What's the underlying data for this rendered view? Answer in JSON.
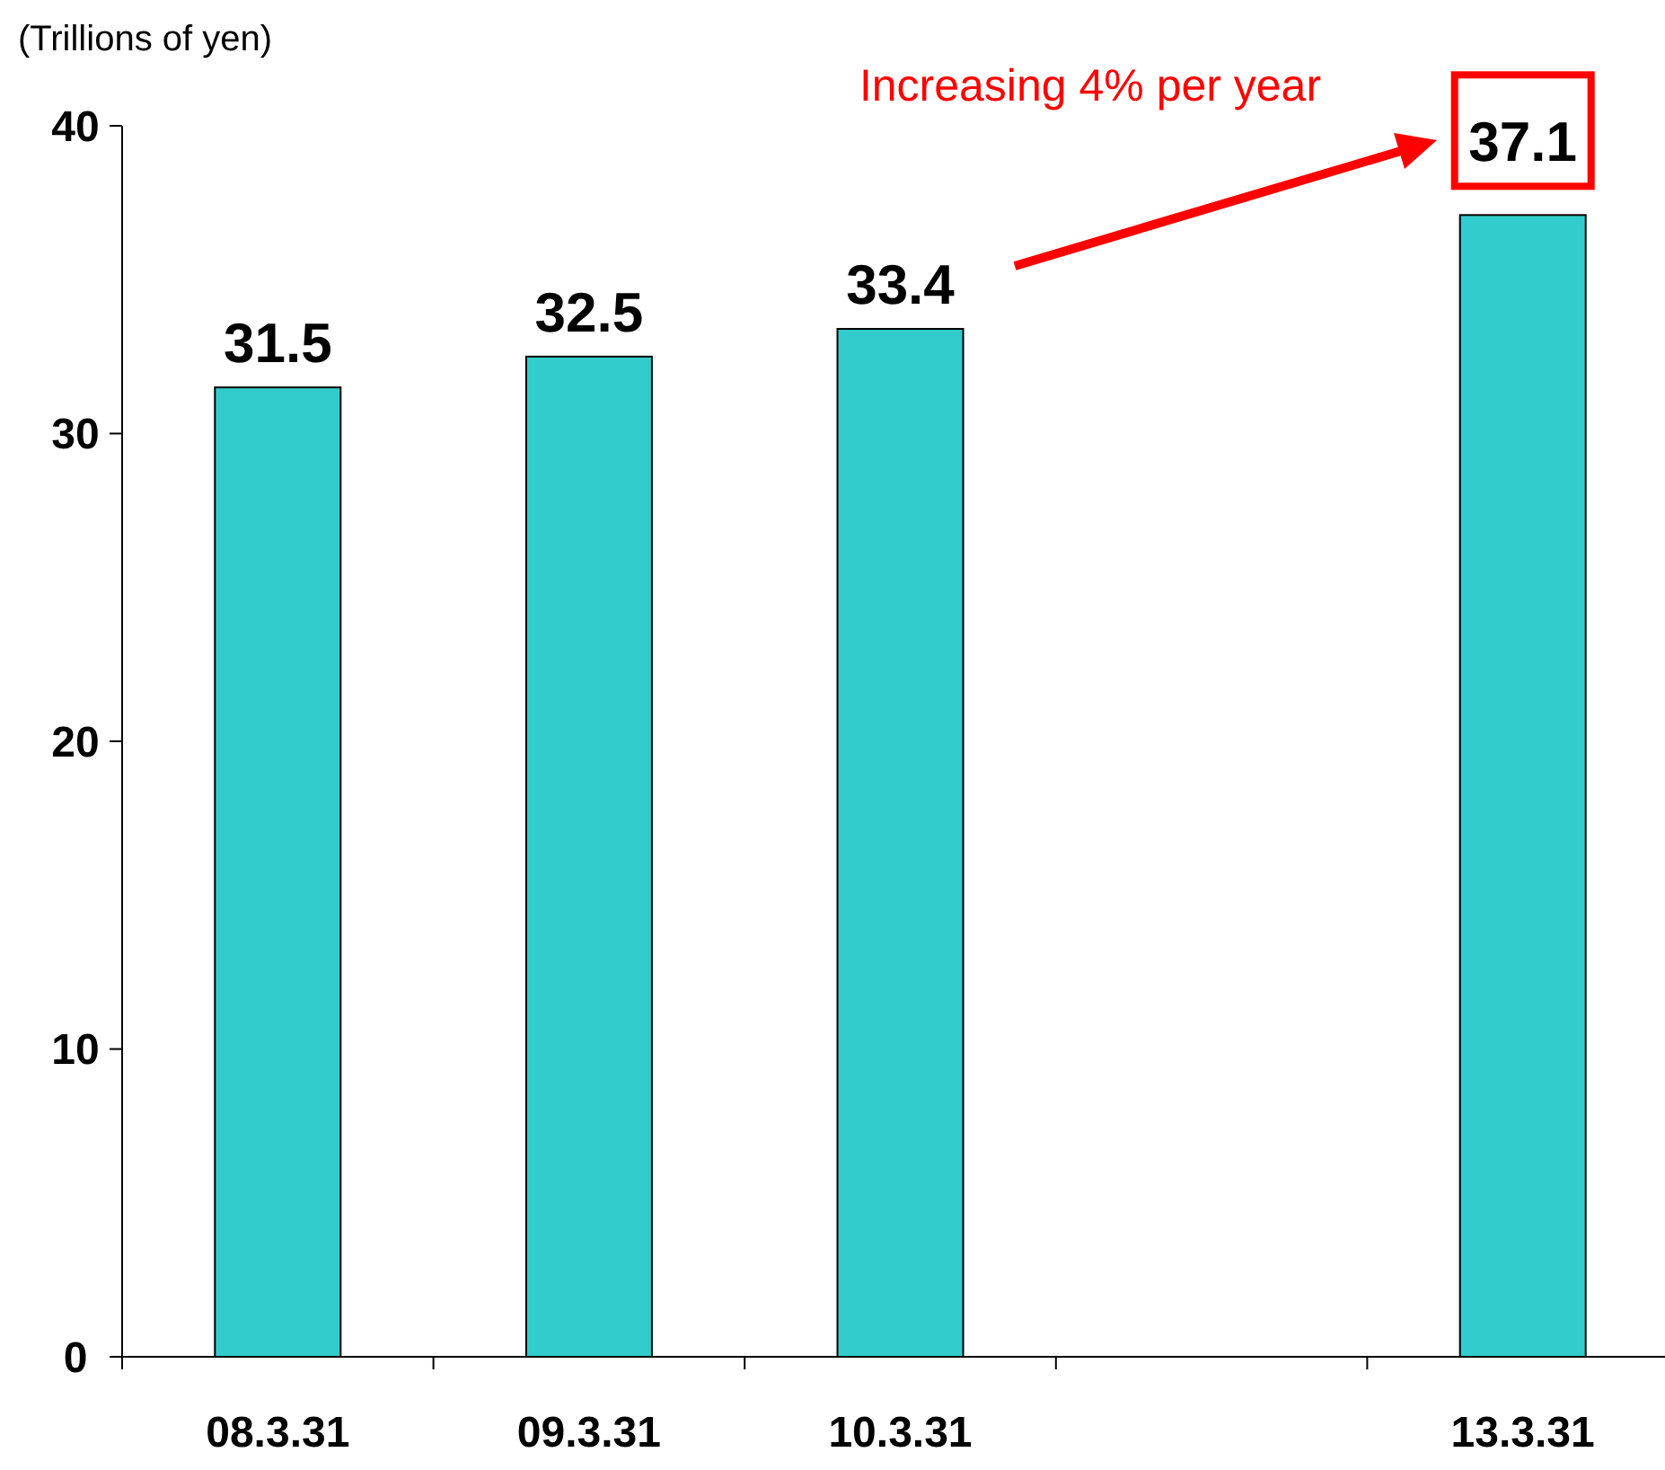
{
  "chart_data": {
    "type": "bar",
    "ylabel": "(Trillions of yen)",
    "categories": [
      "08.3.31",
      "09.3.31",
      "10.3.31",
      null,
      "13.3.31"
    ],
    "values": [
      31.5,
      32.5,
      33.4,
      null,
      37.1
    ],
    "color": "#33cccc",
    "ylim": [
      0,
      40
    ],
    "yticks": [
      0,
      10,
      20,
      30,
      40
    ],
    "grid": false,
    "data_labels": true,
    "annotations": [
      "Increasing 4% per year"
    ]
  }
}
